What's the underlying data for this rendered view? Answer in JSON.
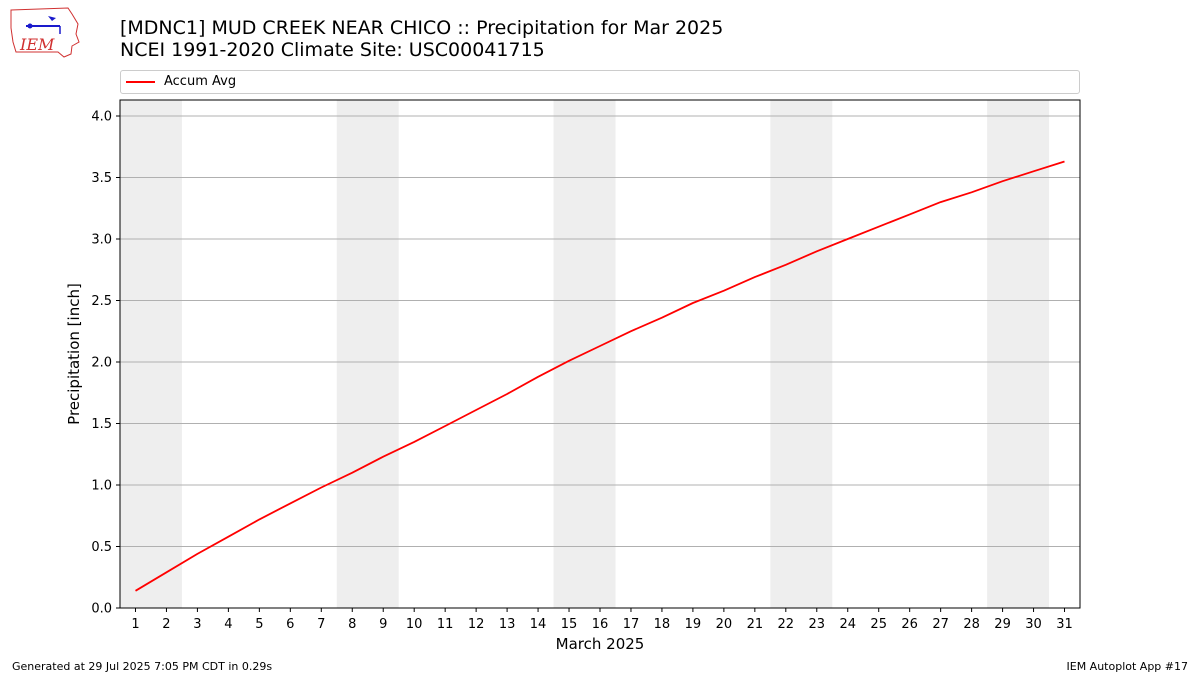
{
  "header": {
    "title_line1": "[MDNC1] MUD CREEK NEAR CHICO :: Precipitation for Mar 2025",
    "title_line2": "NCEI 1991-2020 Climate Site: USC00041715",
    "logo_text": "IEM"
  },
  "footer": {
    "left": "Generated at 29 Jul 2025 7:05 PM CDT in 0.29s",
    "right": "IEM Autoplot App #17"
  },
  "colors": {
    "series_line": "#ff0000",
    "weekend_band": "#eeeeee",
    "grid": "#b0b0b0",
    "logo_red": "#d03030",
    "logo_blue": "#1a1acc"
  },
  "chart_data": {
    "type": "line",
    "xlabel": "March 2025",
    "ylabel": "Precipitation [inch]",
    "xlim": [
      0.5,
      31.5
    ],
    "ylim": [
      0,
      4.13
    ],
    "x_ticks": [
      1,
      2,
      3,
      4,
      5,
      6,
      7,
      8,
      9,
      10,
      11,
      12,
      13,
      14,
      15,
      16,
      17,
      18,
      19,
      20,
      21,
      22,
      23,
      24,
      25,
      26,
      27,
      28,
      29,
      30,
      31
    ],
    "y_ticks": [
      "0.0",
      "0.5",
      "1.0",
      "1.5",
      "2.0",
      "2.5",
      "3.0",
      "3.5",
      "4.0"
    ],
    "grid": "horizontal",
    "legend": {
      "position": "top",
      "entries": [
        "Accum Avg"
      ]
    },
    "shaded_weekend_days": [
      [
        1,
        2
      ],
      [
        8,
        9
      ],
      [
        15,
        16
      ],
      [
        22,
        23
      ],
      [
        29,
        30
      ]
    ],
    "series": [
      {
        "name": "Accum Avg",
        "color": "#ff0000",
        "x": [
          1,
          2,
          3,
          4,
          5,
          6,
          7,
          8,
          9,
          10,
          11,
          12,
          13,
          14,
          15,
          16,
          17,
          18,
          19,
          20,
          21,
          22,
          23,
          24,
          25,
          26,
          27,
          28,
          29,
          30,
          31
        ],
        "y": [
          0.14,
          0.29,
          0.44,
          0.58,
          0.72,
          0.85,
          0.98,
          1.1,
          1.23,
          1.35,
          1.48,
          1.61,
          1.74,
          1.88,
          2.01,
          2.13,
          2.25,
          2.36,
          2.48,
          2.58,
          2.69,
          2.79,
          2.9,
          3.0,
          3.1,
          3.2,
          3.3,
          3.38,
          3.47,
          3.55,
          3.63
        ]
      }
    ]
  }
}
